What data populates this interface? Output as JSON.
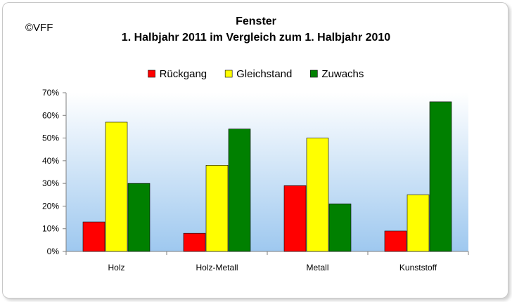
{
  "copyright": "©VFF",
  "chart_data": {
    "type": "bar",
    "title": "Fenster",
    "subtitle": "1. Halbjahr 2011 im Vergleich zum 1. Halbjahr 2010",
    "categories": [
      "Holz",
      "Holz-Metall",
      "Metall",
      "Kunststoff"
    ],
    "series": [
      {
        "name": "Rückgang",
        "color": "#ff0000",
        "values": [
          13,
          8,
          29,
          9
        ]
      },
      {
        "name": "Gleichstand",
        "color": "#ffff00",
        "values": [
          57,
          38,
          50,
          25
        ]
      },
      {
        "name": "Zuwachs",
        "color": "#008000",
        "values": [
          30,
          54,
          21,
          66
        ]
      }
    ],
    "ylim": [
      0,
      70
    ],
    "yticks": [
      "0%",
      "10%",
      "20%",
      "30%",
      "40%",
      "50%",
      "60%",
      "70%"
    ],
    "xlabel": "",
    "ylabel": "",
    "legend_position": "top",
    "grid": false
  }
}
